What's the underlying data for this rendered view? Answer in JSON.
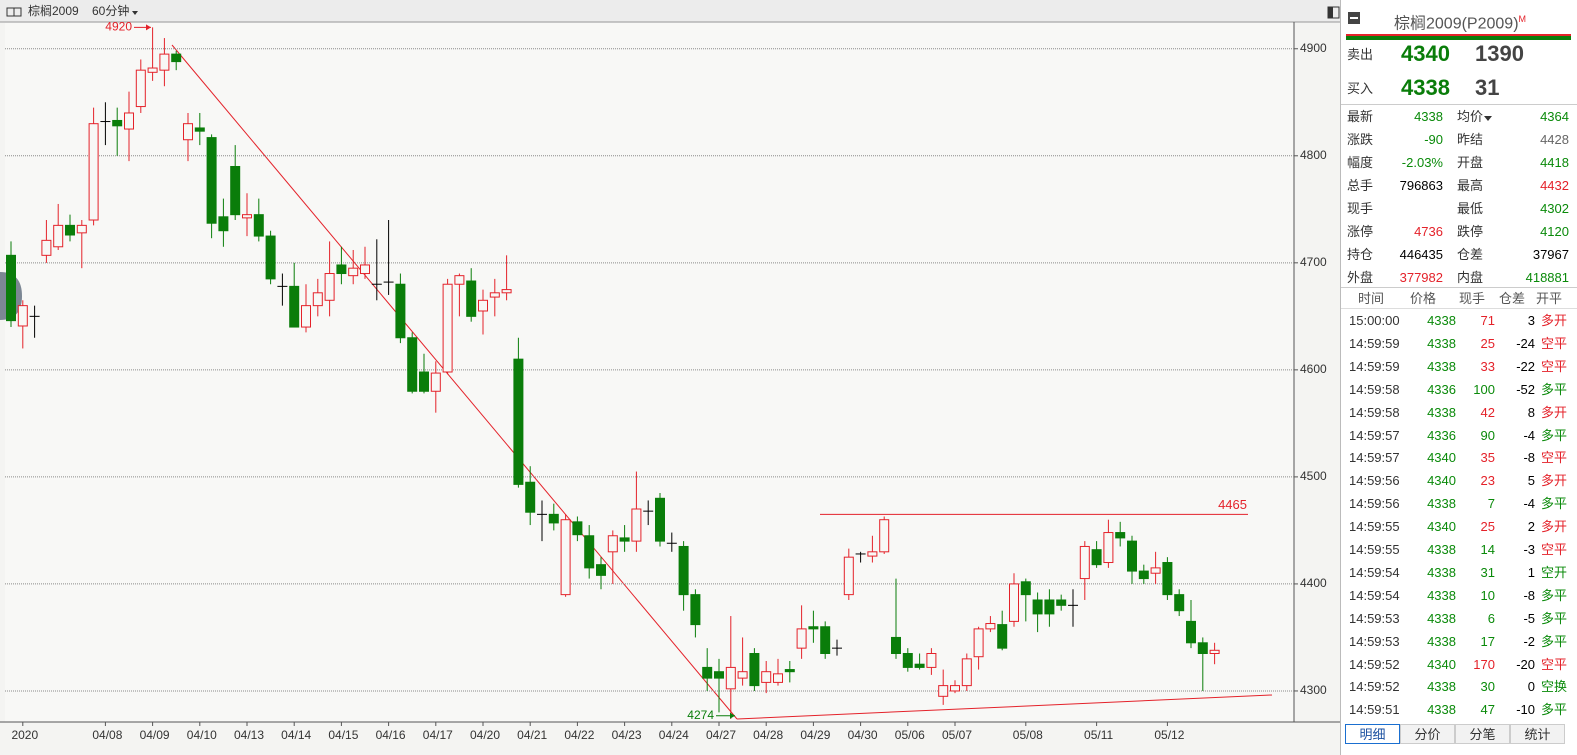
{
  "toolbar": {
    "symbol": "棕榈2009",
    "period": "60分钟"
  },
  "chart_data": {
    "type": "candlestick",
    "categories": [
      null,
      "2020",
      null,
      null,
      null,
      null,
      null,
      null,
      "04/08",
      null,
      null,
      null,
      "04/09",
      null,
      null,
      null,
      "04/10",
      null,
      null,
      null,
      "04/13",
      null,
      null,
      null,
      "04/14",
      null,
      null,
      null,
      "04/15",
      null,
      null,
      null,
      "04/16",
      null,
      null,
      null,
      "04/17",
      null,
      null,
      null,
      "04/20",
      null,
      null,
      null,
      "04/21",
      null,
      null,
      null,
      "04/22",
      null,
      null,
      null,
      "04/23",
      null,
      null,
      null,
      "04/24",
      null,
      null,
      null,
      "04/27",
      null,
      null,
      null,
      "04/28",
      null,
      null,
      null,
      "04/29",
      null,
      null,
      null,
      "04/30",
      null,
      null,
      null,
      "05/06",
      null,
      null,
      null,
      "05/07",
      null,
      null,
      null,
      null,
      null,
      "05/08",
      null,
      null,
      null,
      null,
      null,
      "05/11",
      null,
      null,
      null,
      null,
      null,
      "05/12",
      null,
      null,
      null,
      null
    ],
    "open": [
      4707,
      4641,
      4650,
      4707,
      4715,
      4735,
      4728,
      4740,
      4832,
      4833,
      4825,
      4846,
      4878,
      4880,
      4895,
      4815,
      4826,
      4817,
      4743,
      4790,
      4742,
      4745,
      4725,
      4678,
      4678,
      4640,
      4660,
      4665,
      4698,
      4688,
      4690,
      4680,
      4682,
      4680,
      4630,
      4598,
      4580,
      4598,
      4680,
      4683,
      4655,
      4668,
      4672,
      4610,
      4495,
      4465,
      4465,
      4390,
      4458,
      4445,
      4418,
      4430,
      4443,
      4440,
      4468,
      4480,
      4438,
      4435,
      4390,
      4322,
      4318,
      4302,
      4312,
      4335,
      4308,
      4308,
      4320,
      4340,
      4360,
      4360,
      4340,
      4390,
      4428,
      4426,
      4430,
      4350,
      4335,
      4325,
      4322,
      4295,
      4300,
      4305,
      4332,
      4358,
      4362,
      4365,
      4402,
      4385,
      4385,
      4385,
      4380,
      4405,
      4432,
      4420,
      4448,
      4440,
      4412,
      4410,
      4420,
      4390,
      4365,
      4345,
      4335
    ],
    "high": [
      4720,
      4665,
      4660,
      4740,
      4755,
      4745,
      4740,
      4845,
      4850,
      4845,
      4860,
      4890,
      4920,
      4910,
      4898,
      4840,
      4840,
      4820,
      4760,
      4810,
      4765,
      4760,
      4730,
      4690,
      4700,
      4680,
      4685,
      4720,
      4715,
      4712,
      4715,
      4722,
      4740,
      4690,
      4635,
      4615,
      4608,
      4685,
      4690,
      4695,
      4675,
      4685,
      4707,
      4630,
      4510,
      4478,
      4475,
      4465,
      4463,
      4455,
      4425,
      4450,
      4455,
      4505,
      4478,
      4485,
      4448,
      4440,
      4395,
      4340,
      4330,
      4370,
      4350,
      4340,
      4328,
      4330,
      4328,
      4380,
      4375,
      4365,
      4348,
      4433,
      4430,
      4445,
      4463,
      4405,
      4340,
      4335,
      4340,
      4320,
      4310,
      4335,
      4360,
      4370,
      4375,
      4410,
      4405,
      4392,
      4395,
      4390,
      4395,
      4440,
      4440,
      4460,
      4458,
      4445,
      4418,
      4430,
      4425,
      4395,
      4385,
      4350,
      4345
    ],
    "low": [
      4640,
      4620,
      4630,
      4700,
      4712,
      4720,
      4695,
      4735,
      4810,
      4800,
      4795,
      4840,
      4870,
      4865,
      4880,
      4795,
      4810,
      4723,
      4715,
      4740,
      4725,
      4720,
      4680,
      4660,
      4640,
      4635,
      4650,
      4650,
      4680,
      4680,
      4685,
      4665,
      4670,
      4625,
      4578,
      4578,
      4560,
      4596,
      4650,
      4645,
      4633,
      4650,
      4665,
      4490,
      4455,
      4440,
      4450,
      4388,
      4440,
      4405,
      4395,
      4400,
      4430,
      4430,
      4455,
      4435,
      4430,
      4375,
      4350,
      4300,
      4280,
      4274,
      4305,
      4300,
      4298,
      4305,
      4308,
      4330,
      4345,
      4330,
      4333,
      4385,
      4420,
      4420,
      4428,
      4330,
      4318,
      4320,
      4315,
      4287,
      4298,
      4300,
      4320,
      4355,
      4338,
      4360,
      4365,
      4355,
      4360,
      4375,
      4360,
      4385,
      4415,
      4415,
      4435,
      4400,
      4400,
      4400,
      4385,
      4370,
      4340,
      4300,
      4325
    ],
    "close": [
      4646,
      4660,
      4650,
      4721,
      4735,
      4726,
      4735,
      4830,
      4832,
      4828,
      4840,
      4880,
      4882,
      4895,
      4888,
      4830,
      4823,
      4737,
      4730,
      4745,
      4745,
      4725,
      4685,
      4678,
      4640,
      4660,
      4672,
      4690,
      4690,
      4695,
      4698,
      4680,
      4682,
      4630,
      4580,
      4580,
      4597,
      4680,
      4688,
      4650,
      4665,
      4672,
      4675,
      4493,
      4467,
      4465,
      4457,
      4460,
      4446,
      4415,
      4408,
      4445,
      4440,
      4470,
      4468,
      4440,
      4438,
      4390,
      4362,
      4312,
      4312,
      4322,
      4318,
      4305,
      4318,
      4316,
      4318,
      4358,
      4358,
      4335,
      4340,
      4425,
      4428,
      4430,
      4460,
      4335,
      4322,
      4322,
      4335,
      4305,
      4305,
      4330,
      4358,
      4363,
      4340,
      4400,
      4390,
      4372,
      4372,
      4380,
      4380,
      4435,
      4418,
      4448,
      4443,
      4412,
      4405,
      4415,
      4390,
      4375,
      4345,
      4335,
      4338
    ],
    "up_color": "#e4222a",
    "down_color": "#0a7d0a",
    "doji_color": "#000000",
    "ylim": [
      4271,
      4925
    ],
    "yticks": [
      4300,
      4400,
      4500,
      4600,
      4700,
      4800,
      4900
    ],
    "grid": true,
    "annotations": {
      "peak": 4920,
      "trough": 4274,
      "resistance": 4465
    }
  },
  "quote": {
    "title": "棕榈2009(P2009)",
    "title_mark": "M",
    "ask": {
      "label": "卖出",
      "price": 4340,
      "volume": 1390
    },
    "bid": {
      "label": "买入",
      "price": 4338,
      "volume": 31
    },
    "fields": [
      {
        "label": "最新",
        "value": 4338,
        "color": "green"
      },
      {
        "label": "均价",
        "value": 4364,
        "color": "green"
      },
      {
        "label": "涨跌",
        "value": -90,
        "color": "green"
      },
      {
        "label": "昨结",
        "value": 4428,
        "color": "gray"
      },
      {
        "label": "幅度",
        "value": "-2.03%",
        "color": "green"
      },
      {
        "label": "开盘",
        "value": 4418,
        "color": "green"
      },
      {
        "label": "总手",
        "value": 796863,
        "color": "black"
      },
      {
        "label": "最高",
        "value": 4432,
        "color": "red"
      },
      {
        "label": "现手"
      },
      {
        "label": "最低",
        "value": 4302,
        "color": "green"
      },
      {
        "label": "涨停",
        "value": 4736,
        "color": "red"
      },
      {
        "label": "跌停",
        "value": 4120,
        "color": "green"
      },
      {
        "label": "持仓",
        "value": 446435,
        "color": "black"
      },
      {
        "label": "仓差",
        "value": 37967,
        "color": "black"
      },
      {
        "label": "外盘",
        "value": 377982,
        "color": "red"
      },
      {
        "label": "内盘",
        "value": 418881,
        "color": "green"
      }
    ]
  },
  "ticks": {
    "columns": [
      "时间",
      "价格",
      "现手",
      "仓差",
      "开平"
    ],
    "rows": [
      [
        "15:00:00",
        4338,
        71,
        3,
        "多开",
        "red",
        "red"
      ],
      [
        "14:59:59",
        4338,
        25,
        -24,
        "空平",
        "red",
        "red"
      ],
      [
        "14:59:59",
        4338,
        33,
        -22,
        "空平",
        "red",
        "red"
      ],
      [
        "14:59:58",
        4336,
        100,
        -52,
        "多平",
        "green",
        "green"
      ],
      [
        "14:59:58",
        4338,
        42,
        8,
        "多开",
        "red",
        "red"
      ],
      [
        "14:59:57",
        4336,
        90,
        -4,
        "多平",
        "green",
        "green"
      ],
      [
        "14:59:57",
        4340,
        35,
        -8,
        "空平",
        "red",
        "red"
      ],
      [
        "14:59:56",
        4340,
        23,
        5,
        "多开",
        "red",
        "red"
      ],
      [
        "14:59:56",
        4338,
        7,
        -4,
        "多平",
        "green",
        "green"
      ],
      [
        "14:59:55",
        4340,
        25,
        2,
        "多开",
        "red",
        "red"
      ],
      [
        "14:59:55",
        4338,
        14,
        -3,
        "空平",
        "green",
        "red"
      ],
      [
        "14:59:54",
        4338,
        31,
        1,
        "空开",
        "green",
        "green"
      ],
      [
        "14:59:54",
        4338,
        10,
        -8,
        "多平",
        "green",
        "green"
      ],
      [
        "14:59:53",
        4338,
        6,
        -5,
        "多平",
        "green",
        "green"
      ],
      [
        "14:59:53",
        4338,
        17,
        -2,
        "多平",
        "green",
        "green"
      ],
      [
        "14:59:52",
        4340,
        170,
        -20,
        "空平",
        "red",
        "red"
      ],
      [
        "14:59:52",
        4338,
        30,
        0,
        "空换",
        "green",
        "green"
      ],
      [
        "14:59:51",
        4338,
        47,
        -10,
        "多平",
        "green",
        "green"
      ]
    ]
  },
  "tabs": {
    "items": [
      "明细",
      "分价",
      "分笔",
      "统计"
    ],
    "active": 0
  }
}
